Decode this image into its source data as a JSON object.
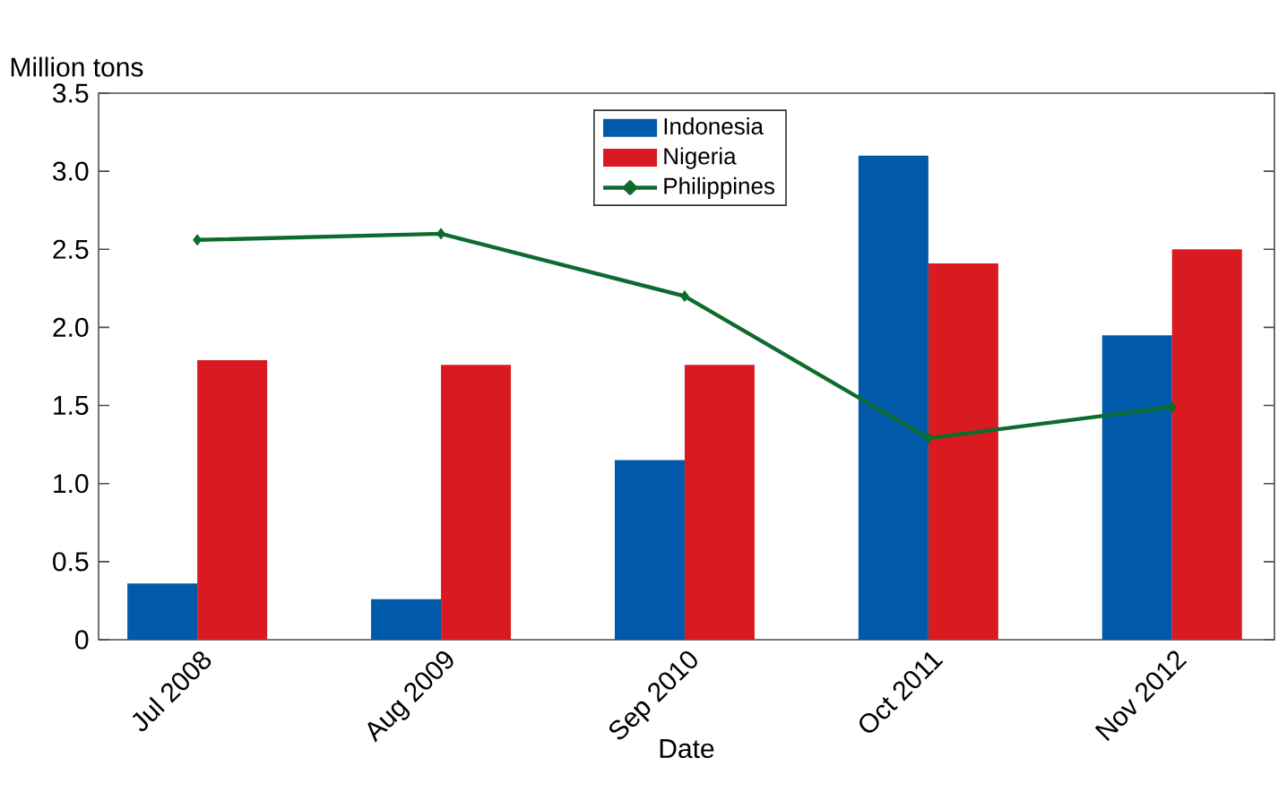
{
  "chart_data": {
    "type": "bar",
    "xlabel": "Date",
    "ylabel": "Million tons",
    "categories": [
      "Jul 2008",
      "Aug 2009",
      "Sep 2010",
      "Oct 2011",
      "Nov 2012"
    ],
    "series": [
      {
        "name": "Indonesia",
        "color": "#005aa9",
        "values": [
          0.36,
          0.26,
          1.15,
          3.1,
          1.95
        ]
      },
      {
        "name": "Nigeria",
        "color": "#d91a21",
        "values": [
          1.79,
          1.76,
          1.76,
          2.41,
          2.5
        ]
      },
      {
        "name": "Philippines",
        "color": "#0e6b2e",
        "type": "line",
        "marker": "diamond",
        "values": [
          2.56,
          2.6,
          2.2,
          1.29,
          1.49
        ]
      }
    ],
    "ylim": [
      0,
      3.5
    ],
    "yticks": [
      0,
      0.5,
      {
        "value": 1,
        "label": "1.0"
      },
      1.5,
      {
        "value": 2,
        "label": "2.0"
      },
      2.5,
      {
        "value": 3,
        "label": "3.0"
      },
      3.5
    ],
    "legend": "top",
    "grid": false
  }
}
